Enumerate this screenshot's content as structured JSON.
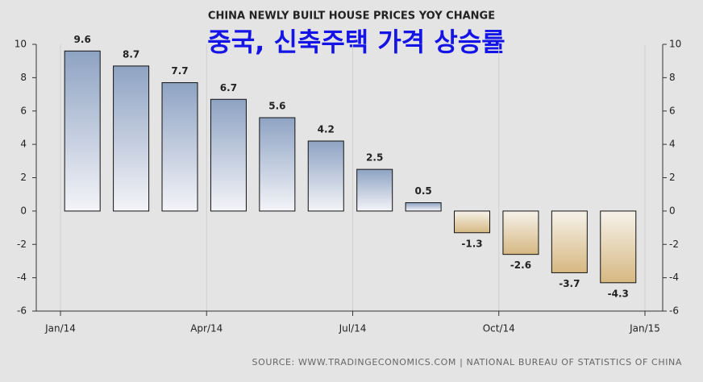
{
  "chart_data": {
    "type": "bar",
    "title": "CHINA NEWLY BUILT HOUSE PRICES YOY CHANGE",
    "subtitle": "중국, 신축주택 가격 상승률",
    "source": "SOURCE: WWW.TRADINGECONOMICS.COM | NATIONAL BUREAU OF STATISTICS OF CHINA",
    "x": [
      "2014-01",
      "2014-02",
      "2014-03",
      "2014-04",
      "2014-05",
      "2014-06",
      "2014-07",
      "2014-08",
      "2014-09",
      "2014-10",
      "2014-11",
      "2014-12"
    ],
    "values": [
      9.6,
      8.7,
      7.7,
      6.7,
      5.6,
      4.2,
      2.5,
      0.5,
      -1.3,
      -2.6,
      -3.7,
      -4.3
    ],
    "color": "#8ea3c3",
    "negative_color": "#d6b882",
    "xticks": [
      {
        "value": "2014-01",
        "label": "Jan/14"
      },
      {
        "value": "2014-04",
        "label": "Apr/14"
      },
      {
        "value": "2014-07",
        "label": "Jul/14"
      },
      {
        "value": "2014-10",
        "label": "Oct/14"
      },
      {
        "value": "2015-01",
        "label": "Jan/15"
      }
    ],
    "ylim": [
      -6,
      10
    ],
    "yticks": [
      -6,
      -4,
      -2,
      0,
      2,
      4,
      6,
      8,
      10
    ],
    "y2lim": [
      -6,
      10
    ],
    "y2ticks": [
      -6,
      -4,
      -2,
      0,
      2,
      4,
      6,
      8,
      10
    ],
    "grid": true
  }
}
